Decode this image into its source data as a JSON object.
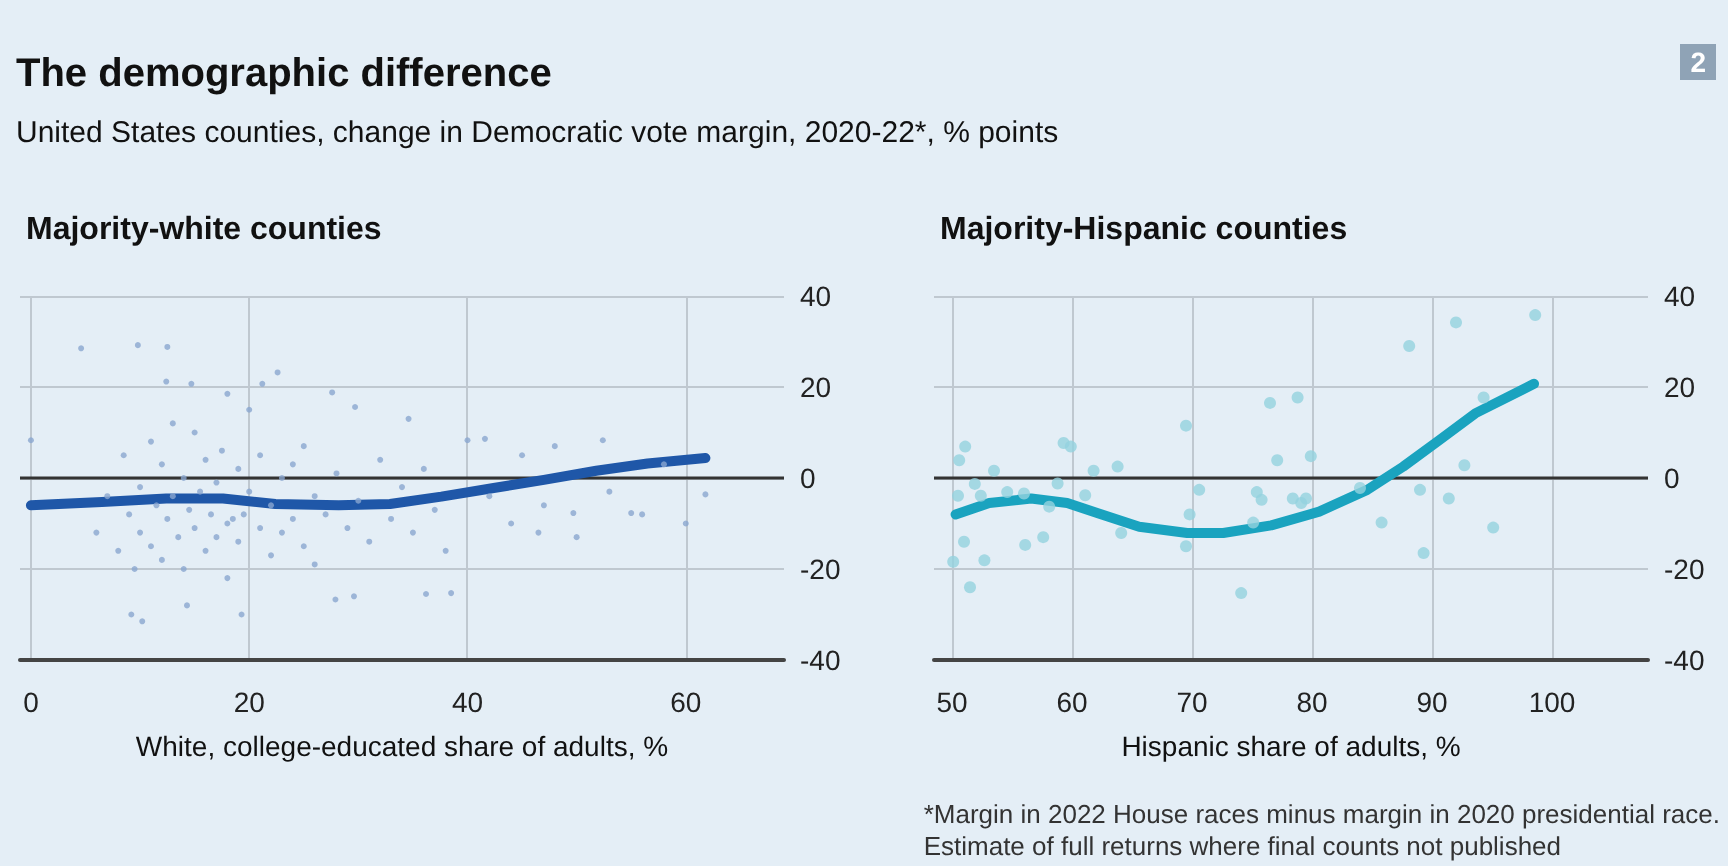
{
  "chart_data": [
    {
      "type": "other",
      "title": "The demographic difference",
      "subtitle": "United States counties, change in Democratic vote margin, 2020-22*, % points",
      "annotations": [
        "2"
      ]
    },
    {
      "type": "scatter",
      "title": "Majority-white counties",
      "xlabel": "White, college-educated share of adults, %",
      "xlim": [
        -1,
        69
      ],
      "xticks": [
        0,
        20,
        40,
        60
      ],
      "ylim": [
        -40,
        40
      ],
      "yticks": [
        40,
        20,
        0,
        -20,
        -40
      ],
      "grid": true,
      "ref_lines": [
        {
          "axis": "y",
          "value": 0,
          "color": "#333333"
        }
      ],
      "series": [
        {
          "type": "scatter",
          "color": "#8aa6cf",
          "marker": "circle",
          "x": [
            4.6,
            9.8,
            12.5,
            22.6,
            0,
            9.2,
            10.2,
            14.3,
            19.3,
            27.9,
            29.6,
            36.2,
            38.5,
            61.8,
            55,
            52.4,
            49.7,
            46.5,
            27.6,
            29.7,
            34.6,
            40,
            41.6,
            48,
            12.4,
            14.7,
            21.2,
            18,
            6,
            7,
            8,
            8.5,
            9,
            9.5,
            10,
            10,
            11,
            11,
            11.5,
            12,
            12,
            12.5,
            13,
            13,
            13.5,
            14,
            14,
            14.5,
            15,
            15,
            15.5,
            16,
            16,
            16.5,
            17,
            17,
            17.5,
            18,
            18,
            18.5,
            19,
            19,
            19.5,
            20,
            20,
            21,
            21,
            22,
            22,
            23,
            23,
            24,
            24,
            25,
            25,
            26,
            26,
            27,
            28,
            29,
            30,
            31,
            32,
            33,
            34,
            35,
            36,
            37,
            38,
            42,
            44,
            45,
            47,
            50,
            53,
            56,
            58,
            60
          ],
          "values": [
            28.5,
            29.2,
            28.8,
            23.2,
            8.3,
            -30,
            -31.5,
            -28,
            -30,
            -26.7,
            -26,
            -25.5,
            -25.3,
            -3.6,
            -7.7,
            8.3,
            -7.7,
            -12,
            18.8,
            15.6,
            13,
            8.3,
            8.6,
            7,
            21.2,
            20.7,
            20.7,
            18.5,
            -12,
            -4,
            -16,
            5,
            -8,
            -20,
            -2,
            -12,
            8,
            -15,
            -6,
            3,
            -18,
            -9,
            12,
            -4,
            -13,
            0,
            -20,
            -7,
            10,
            -11,
            -3,
            4,
            -16,
            -8,
            -1,
            -13,
            6,
            -10,
            -22,
            -9,
            2,
            -14,
            -8,
            15,
            -3,
            -11,
            5,
            -17,
            -6,
            0,
            -12,
            3,
            -9,
            -15,
            7,
            -4,
            -19,
            -8,
            1,
            -11,
            -5,
            -14,
            4,
            -9,
            -2,
            -12,
            2,
            -7,
            -16,
            -4,
            -10,
            5,
            -6,
            -13,
            -3,
            -8,
            3,
            -10
          ]
        },
        {
          "type": "line",
          "color": "#1f57a8",
          "marker": "none",
          "x": [
            0,
            6.5,
            12.4,
            17.6,
            22.4,
            28.2,
            32.9,
            37.6,
            42.4,
            47,
            51.8,
            56.5,
            61.8
          ],
          "values": [
            -6,
            -5.3,
            -4.5,
            -4.5,
            -5.7,
            -6,
            -5.7,
            -4.1,
            -2.2,
            -0.4,
            1.6,
            3.2,
            4.4
          ]
        }
      ]
    },
    {
      "type": "scatter",
      "title": "Majority-Hispanic counties",
      "xlabel": "Hispanic share of adults, %",
      "xlim": [
        48.5,
        108
      ],
      "xticks": [
        50,
        60,
        70,
        80,
        90,
        100
      ],
      "ylim": [
        -40,
        40
      ],
      "yticks": [
        40,
        20,
        0,
        -20,
        -40
      ],
      "grid": true,
      "ref_lines": [
        {
          "axis": "y",
          "value": 0,
          "color": "#333333"
        }
      ],
      "annotations": [
        "*Margin in 2022 House races minus margin in 2020 presidential race.\nEstimate of full returns where final counts not published"
      ],
      "series": [
        {
          "type": "scatter",
          "color": "#93d2df",
          "marker": "circle",
          "x": [
            50.1,
            50.5,
            50.6,
            51.1,
            51,
            51.5,
            51.9,
            52.4,
            52.7,
            53.5,
            54.6,
            56,
            56.1,
            57.6,
            58.8,
            58.1,
            59.3,
            59.9,
            61.1,
            61.8,
            63.8,
            64.1,
            69.5,
            69.8,
            69.5,
            70.6,
            74.1,
            75.4,
            75.8,
            75.1,
            76.5,
            77.1,
            78.4,
            78.8,
            79.1,
            79.5,
            79.9,
            84,
            85.8,
            88.1,
            89,
            89.3,
            91.4,
            92,
            92.7,
            94.3,
            95.1,
            98.6
          ],
          "values": [
            -18.4,
            -3.9,
            3.9,
            6.9,
            -14,
            -24,
            -1.3,
            -3.9,
            -18.1,
            1.6,
            -3.1,
            -3.4,
            -14.7,
            -13,
            -1.2,
            -6.3,
            7.7,
            6.9,
            -3.8,
            1.6,
            2.5,
            -12.1,
            11.5,
            -8,
            -15,
            -2.6,
            -25.3,
            -3.1,
            -4.8,
            -9.8,
            16.5,
            3.9,
            -4.5,
            17.7,
            -5.5,
            -4.5,
            4.8,
            -2.2,
            -9.8,
            29,
            -2.6,
            -16.5,
            -4.5,
            34.2,
            2.8,
            17.7,
            -10.9,
            35.8
          ]
        },
        {
          "type": "line",
          "color": "#1aa3bf",
          "marker": "none",
          "x": [
            50.3,
            53.1,
            56.6,
            59.6,
            62.1,
            65.6,
            69.6,
            72.6,
            76.6,
            80.6,
            84.6,
            87.6,
            90.6,
            93.6,
            98.5
          ],
          "values": [
            -8,
            -5.5,
            -4.5,
            -5.5,
            -7.7,
            -10.7,
            -12.1,
            -12.1,
            -10.4,
            -7.4,
            -2.6,
            2.5,
            8.3,
            14.2,
            20.7
          ]
        }
      ]
    }
  ]
}
